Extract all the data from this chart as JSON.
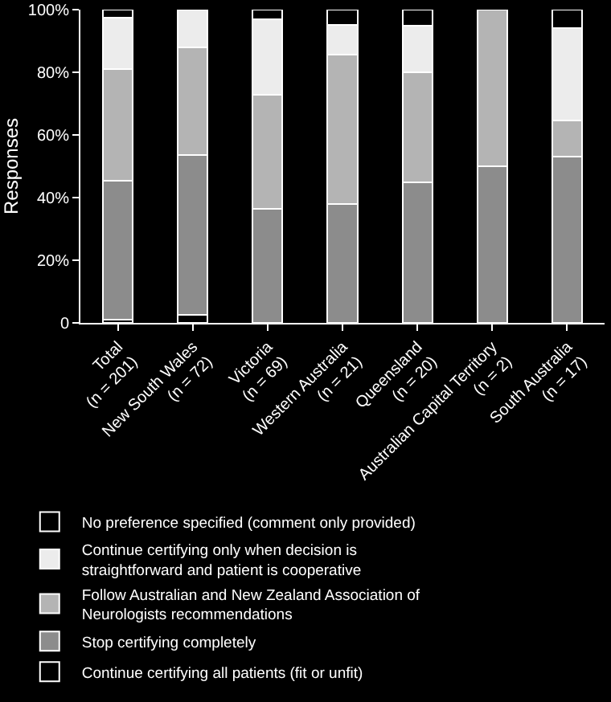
{
  "chart_data": {
    "type": "bar",
    "stacked": true,
    "ylabel": "Responses",
    "categories": [
      "Total\n(n = 201)",
      "New South Wales\n(n = 72)",
      "Victoria\n(n = 69)",
      "Western Australia\n(n = 21)",
      "Queensland\n(n = 20)",
      "Australian Capital Territory\n(n = 2)",
      "South Australia\n(n = 17)"
    ],
    "series": [
      {
        "name": "Continue certifying all patients (fit or unfit)",
        "color": "#000000",
        "values": [
          1,
          2.5,
          0,
          0,
          0,
          0,
          0
        ]
      },
      {
        "name": "Stop certifying completely",
        "color": "#8c8c8c",
        "values": [
          44.5,
          51,
          36.3,
          38,
          45,
          50,
          53
        ]
      },
      {
        "name": "Follow Australian and New Zealand Association of Neurologists recommendations",
        "color": "#b4b4b4",
        "values": [
          35.5,
          34.5,
          36.6,
          47.6,
          35,
          50,
          11.5
        ]
      },
      {
        "name": "Continue certifying only when decision is straightforward and patient is cooperative",
        "color": "#ececec",
        "values": [
          16.5,
          12,
          24,
          9.6,
          15,
          0,
          29.5
        ]
      },
      {
        "name": "No preference specified (comment only provided)",
        "color": "#000000",
        "values": [
          2.5,
          0,
          3.1,
          4.8,
          5,
          0,
          6
        ]
      }
    ],
    "ylim": [
      0,
      100
    ],
    "yticks": [
      0,
      {
        "value": 20,
        "label": "20%"
      },
      {
        "value": 40,
        "label": "40%"
      },
      {
        "value": 60,
        "label": "60%"
      },
      {
        "value": 80,
        "label": "80%"
      },
      {
        "value": 100,
        "label": "100%"
      }
    ],
    "grid": false,
    "legend": "bottom"
  }
}
